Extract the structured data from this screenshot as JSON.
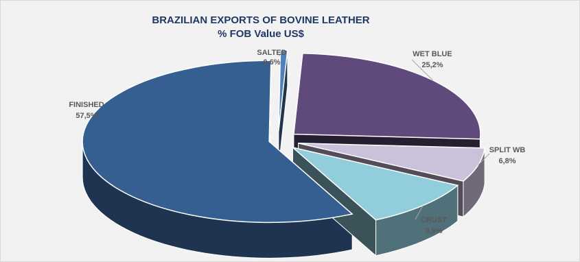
{
  "chart_data": {
    "type": "pie",
    "title": "BRAZILIAN EXPORTS OF BOVINE LEATHER",
    "subtitle": "% FOB Value US$",
    "slices": [
      {
        "name": "SALTED",
        "label": "0,6%",
        "value": 0.6,
        "color": "#4f81bd"
      },
      {
        "name": "WET BLUE",
        "label": "25,2%",
        "value": 25.2,
        "color": "#604a7b"
      },
      {
        "name": "SPLIT WB",
        "label": "6,8%",
        "value": 6.8,
        "color": "#ccc1da"
      },
      {
        "name": "CRUST",
        "label": "9,9%",
        "value": 9.9,
        "color": "#92cddc"
      },
      {
        "name": "FINISHED",
        "label": "57,5%",
        "value": 57.5,
        "color": "#365f91"
      }
    ]
  }
}
